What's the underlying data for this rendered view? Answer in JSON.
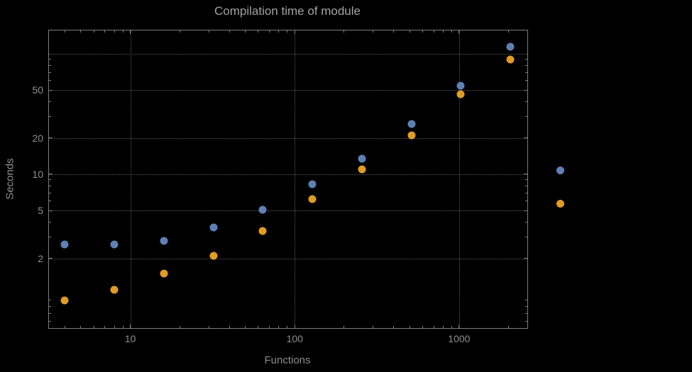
{
  "chart_data": {
    "type": "scatter",
    "title": "Compilation time of module",
    "xlabel": "Functions",
    "ylabel": "Seconds",
    "x_scale": "log",
    "y_scale": "log",
    "xlim": [
      3.2,
      2600
    ],
    "ylim": [
      0.53,
      156
    ],
    "grid": true,
    "x": [
      4,
      8,
      16,
      32,
      64,
      128,
      256,
      512,
      1024,
      2048
    ],
    "series": [
      {
        "name": "series-1-blue",
        "color": "#5e81b5",
        "values": [
          2.6,
          2.6,
          2.8,
          3.6,
          5.1,
          8.3,
          13.5,
          26,
          54,
          115
        ]
      },
      {
        "name": "series-2-orange",
        "color": "#e19c24",
        "values": [
          0.9,
          1.1,
          1.5,
          2.1,
          3.4,
          6.2,
          11,
          21,
          46,
          90
        ]
      }
    ],
    "x_ticks": [
      10,
      100,
      1000
    ],
    "x_tick_labels": [
      "10",
      "100",
      "1000"
    ],
    "y_ticks": [
      2,
      5,
      10,
      20,
      50
    ],
    "y_tick_labels": [
      "2",
      "5",
      "10",
      "20",
      "50"
    ],
    "x_gridlines": [
      10,
      100,
      1000
    ],
    "y_gridlines": [
      2,
      5,
      10,
      20,
      50,
      100
    ],
    "legend_position": "right-outside",
    "legend_markers": [
      {
        "name": "legend-marker-blue",
        "color": "#5e81b5"
      },
      {
        "name": "legend-marker-orange",
        "color": "#e19c24"
      }
    ]
  },
  "colors": {
    "background": "#000000",
    "frame": "#7d7d7d",
    "grid": "#5c5c5c",
    "text": "#8f8f8f",
    "title": "#a3a3a3"
  }
}
